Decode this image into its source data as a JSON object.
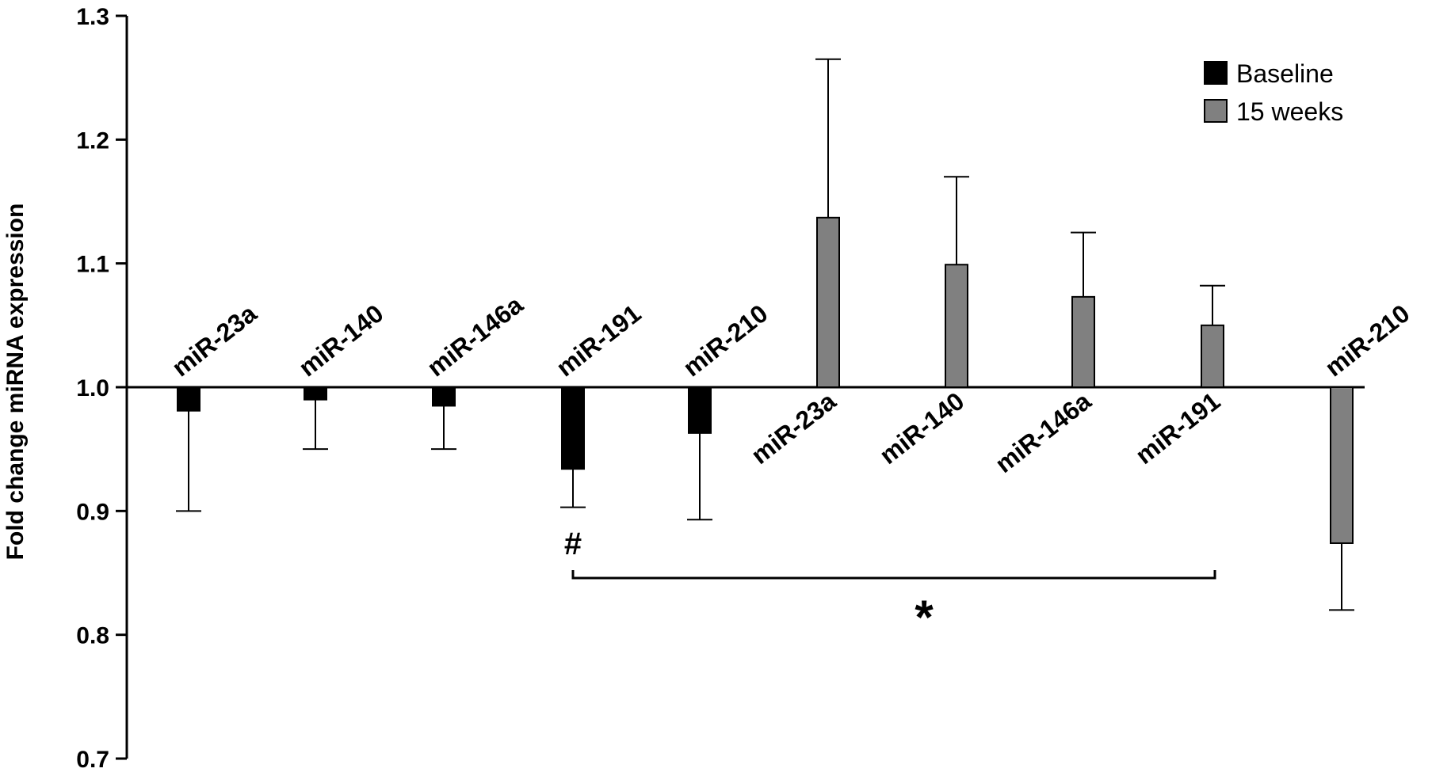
{
  "chart_data": {
    "type": "bar",
    "title": "",
    "xlabel": "",
    "ylabel": "Fold change miRNA expression",
    "ylim": [
      0.7,
      1.3
    ],
    "yticks": [
      "0.7",
      "0.8",
      "0.9",
      "1.0",
      "1.1",
      "1.2",
      "1.3"
    ],
    "baseline": 1.0,
    "grid": false,
    "legend_position": "top-right",
    "colors": {
      "Baseline": "#000000",
      "15 weeks": "#808080",
      "axis": "#000000"
    },
    "series": [
      {
        "name": "Baseline",
        "categories": [
          "miR-23a",
          "miR-140",
          "miR-146a",
          "miR-191",
          "miR-210"
        ],
        "values": [
          0.981,
          0.99,
          0.985,
          0.934,
          0.963
        ],
        "error_ends": [
          0.9,
          0.95,
          0.95,
          0.903,
          0.893
        ]
      },
      {
        "name": "15 weeks",
        "categories": [
          "miR-23a",
          "miR-140",
          "miR-146a",
          "miR-191",
          "miR-210"
        ],
        "values": [
          1.137,
          1.099,
          1.073,
          1.05,
          0.874
        ],
        "error_ends": [
          1.265,
          1.17,
          1.125,
          1.082,
          0.82
        ]
      }
    ],
    "annotations": {
      "hash": "#",
      "star": "*"
    }
  }
}
